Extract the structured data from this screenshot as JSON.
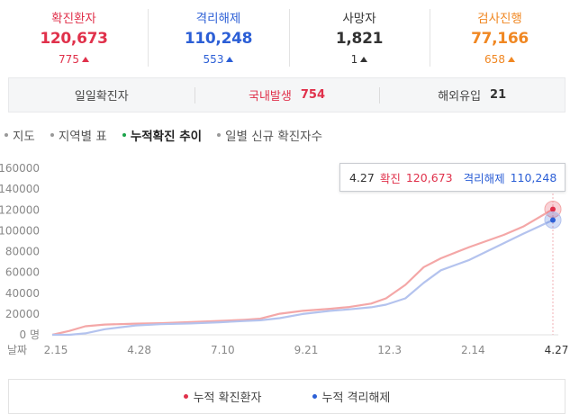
{
  "stats": [
    {
      "label": "확진환자",
      "value": "120,673",
      "delta": "775",
      "color": "#e0314b"
    },
    {
      "label": "격리해제",
      "value": "110,248",
      "delta": "553",
      "color": "#2c5fd6"
    },
    {
      "label": "사망자",
      "value": "1,821",
      "delta": "1",
      "color": "#333333"
    },
    {
      "label": "검사진행",
      "value": "77,166",
      "delta": "658",
      "color": "#f08722"
    }
  ],
  "daily": {
    "total_label": "일일확진자",
    "domestic_label": "국내발생",
    "domestic_value": "754",
    "overseas_label": "해외유입",
    "overseas_value": "21"
  },
  "tabs": [
    "지도",
    "지역별 표",
    "누적확진 추이",
    "일별 신규 확진자수"
  ],
  "active_tab": "누적확진 추이",
  "tooltip": {
    "date": "4.27",
    "confirmed_label": "확진",
    "confirmed_value": "120,673",
    "released_label": "격리해제",
    "released_value": "110,248"
  },
  "legend": {
    "confirmed": "누적 확진환자",
    "released": "누적 격리해제"
  },
  "chart_data": {
    "type": "line",
    "ylim": [
      0,
      160000
    ],
    "y_ticks": [
      {
        "value": 160000,
        "label": "160000"
      },
      {
        "value": 140000,
        "label": "140000"
      },
      {
        "value": 120000,
        "label": "120000"
      },
      {
        "value": 100000,
        "label": "100000"
      },
      {
        "value": 80000,
        "label": "80000"
      },
      {
        "value": 60000,
        "label": "60000"
      },
      {
        "value": 40000,
        "label": "40000"
      },
      {
        "value": 20000,
        "label": "20000"
      },
      {
        "value": 0,
        "label": "0 명"
      }
    ],
    "x_axis_label": "날짜",
    "x_ticks": [
      "2.15",
      "4.28",
      "7.10",
      "9.21",
      "12.3",
      "2.14",
      "4.27"
    ],
    "series": [
      {
        "name": "누적 확진환자",
        "color": "#f4a7a7",
        "marker": "#e0314b",
        "points": [
          [
            "2.15",
            30
          ],
          [
            "3.01",
            3700
          ],
          [
            "3.15",
            8200
          ],
          [
            "4.01",
            9900
          ],
          [
            "4.28",
            10750
          ],
          [
            "5.20",
            11120
          ],
          [
            "6.15",
            12200
          ],
          [
            "7.10",
            13300
          ],
          [
            "8.01",
            14400
          ],
          [
            "8.15",
            15500
          ],
          [
            "9.01",
            20200
          ],
          [
            "9.21",
            23000
          ],
          [
            "10.15",
            25000
          ],
          [
            "11.01",
            26700
          ],
          [
            "11.20",
            30000
          ],
          [
            "12.3",
            35000
          ],
          [
            "12.20",
            48000
          ],
          [
            "1.05",
            65000
          ],
          [
            "1.20",
            73500
          ],
          [
            "2.14",
            84300
          ],
          [
            "3.15",
            96000
          ],
          [
            "4.01",
            104000
          ],
          [
            "4.27",
            120673
          ]
        ]
      },
      {
        "name": "누적 격리해제",
        "color": "#b4c3ee",
        "marker": "#2c5fd6",
        "points": [
          [
            "2.15",
            16
          ],
          [
            "3.01",
            30
          ],
          [
            "3.15",
            1400
          ],
          [
            "4.01",
            5400
          ],
          [
            "4.28",
            9000
          ],
          [
            "5.20",
            10200
          ],
          [
            "6.15",
            10900
          ],
          [
            "7.10",
            12000
          ],
          [
            "8.01",
            13200
          ],
          [
            "8.15",
            13900
          ],
          [
            "9.01",
            16000
          ],
          [
            "9.21",
            20000
          ],
          [
            "10.15",
            23000
          ],
          [
            "11.01",
            24500
          ],
          [
            "11.20",
            26500
          ],
          [
            "12.3",
            29000
          ],
          [
            "12.20",
            35000
          ],
          [
            "1.05",
            50000
          ],
          [
            "1.20",
            62000
          ],
          [
            "2.14",
            72000
          ],
          [
            "3.15",
            88000
          ],
          [
            "4.01",
            97000
          ],
          [
            "4.27",
            110248
          ]
        ]
      }
    ]
  }
}
